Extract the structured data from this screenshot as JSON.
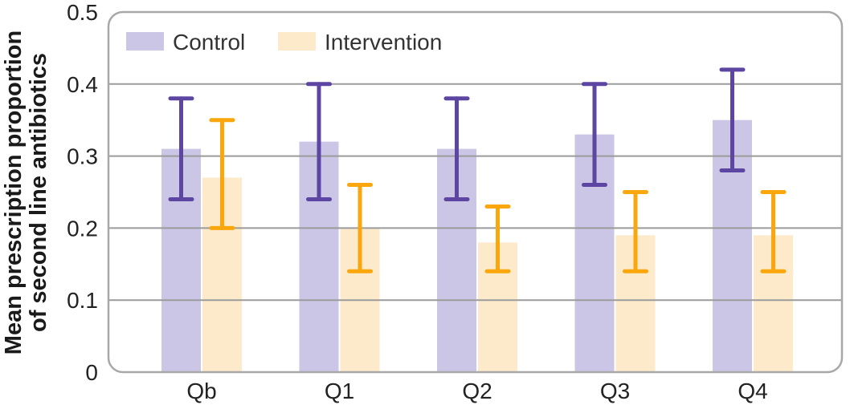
{
  "chart_data": {
    "type": "bar",
    "title": "",
    "xlabel": "",
    "ylabel": "Mean prescription proportion of second line antibiotics",
    "ylabel_lines": [
      "Mean prescription proportion",
      "of second line antibiotics"
    ],
    "categories": [
      "Qb",
      "Q1",
      "Q2",
      "Q3",
      "Q4"
    ],
    "ylim": [
      0,
      0.5
    ],
    "yticks": [
      0,
      0.1,
      0.2,
      0.3,
      0.4,
      0.5
    ],
    "ytick_labels": [
      "0",
      "0.1",
      "0.2",
      "0.3",
      "0.4",
      "0.5"
    ],
    "grid": true,
    "error_bars": true,
    "legend_position": "top-left",
    "series": [
      {
        "name": "Control",
        "bar_color": "#cbc6e5",
        "error_color": "#5d45a2",
        "values": [
          0.31,
          0.32,
          0.31,
          0.33,
          0.35
        ],
        "error_low": [
          0.24,
          0.24,
          0.24,
          0.26,
          0.28
        ],
        "error_high": [
          0.38,
          0.4,
          0.38,
          0.4,
          0.42
        ]
      },
      {
        "name": "Intervention",
        "bar_color": "#fdeacb",
        "error_color": "#f9a70d",
        "values": [
          0.27,
          0.2,
          0.18,
          0.19,
          0.19
        ],
        "error_low": [
          0.2,
          0.14,
          0.14,
          0.14,
          0.14
        ],
        "error_high": [
          0.35,
          0.26,
          0.23,
          0.25,
          0.25
        ]
      }
    ],
    "colors": {
      "gridline": "#9b9b9b",
      "frame": "#a8a8a8",
      "text": "#222222"
    }
  }
}
